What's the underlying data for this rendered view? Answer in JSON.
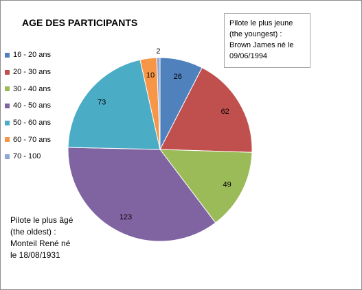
{
  "chart_data": {
    "type": "pie",
    "title": "AGE DES PARTICIPANTS",
    "categories": [
      "16 - 20 ans",
      "20 - 30 ans",
      "30 - 40 ans",
      "40 - 50 ans",
      "50 - 60 ans",
      "60 - 70 ans",
      "70 - 100"
    ],
    "values": [
      26,
      62,
      49,
      123,
      73,
      10,
      2
    ],
    "colors": [
      "#4f81bd",
      "#c0504d",
      "#9bbb59",
      "#8064a2",
      "#4bacc6",
      "#f79646",
      "#8fa8d6"
    ],
    "legend_position": "left",
    "start_angle_deg": 0,
    "direction": "clockwise"
  },
  "annotations": {
    "youngest": "Pilote le plus jeune\n(the youngest) :\nBrown James  né le\n09/06/1994",
    "oldest": "Pilote le plus âgé\n(the oldest) :\nMonteil René né\nle  18/08/1931"
  }
}
